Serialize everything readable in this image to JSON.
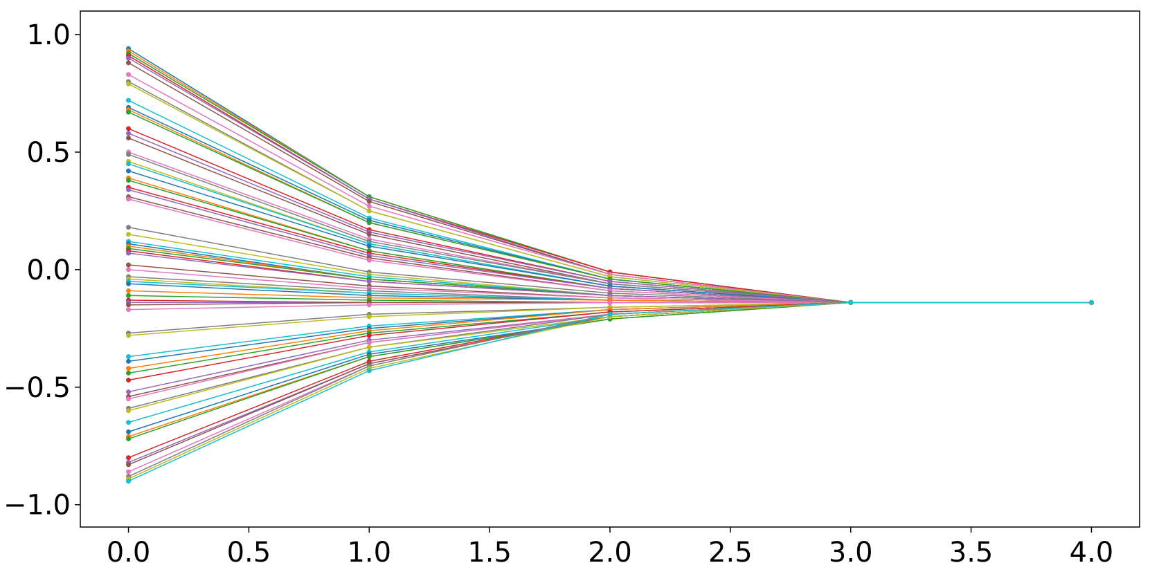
{
  "chart_data": {
    "type": "line",
    "marker": "circle",
    "x": [
      0,
      1,
      2,
      3,
      4
    ],
    "xlim": [
      -0.2,
      4.2
    ],
    "ylim": [
      -1.095,
      1.1
    ],
    "xticks": [
      {
        "value": 0,
        "label": "0.0"
      },
      {
        "value": 0.5,
        "label": "0.5"
      },
      {
        "value": 1,
        "label": "1.0"
      },
      {
        "value": 1.5,
        "label": "1.5"
      },
      {
        "value": 2,
        "label": "2.0"
      },
      {
        "value": 2.5,
        "label": "2.5"
      },
      {
        "value": 3,
        "label": "3.0"
      },
      {
        "value": 3.5,
        "label": "3.5"
      },
      {
        "value": 4,
        "label": "4.0"
      }
    ],
    "yticks": [
      {
        "value": -1,
        "label": "−1.0"
      },
      {
        "value": -0.5,
        "label": "−0.5"
      },
      {
        "value": 0,
        "label": "0.0"
      },
      {
        "value": 0.5,
        "label": "0.5"
      },
      {
        "value": 1,
        "label": "1.0"
      }
    ],
    "grid": false,
    "series": [
      {
        "color": "#1f77b4",
        "values": [
          0.94,
          0.31,
          -0.01,
          -0.14,
          -0.14
        ]
      },
      {
        "color": "#ff7f0e",
        "values": [
          0.93,
          0.31,
          -0.01,
          -0.14,
          -0.14
        ]
      },
      {
        "color": "#2ca02c",
        "values": [
          0.92,
          0.31,
          -0.01,
          -0.14,
          -0.14
        ]
      },
      {
        "color": "#d62728",
        "values": [
          0.91,
          0.3,
          -0.01,
          -0.14,
          -0.14
        ]
      },
      {
        "color": "#9467bd",
        "values": [
          0.9,
          0.3,
          -0.02,
          -0.14,
          -0.14
        ]
      },
      {
        "color": "#8c564b",
        "values": [
          0.88,
          0.29,
          -0.02,
          -0.14,
          -0.14
        ]
      },
      {
        "color": "#e377c2",
        "values": [
          0.83,
          0.27,
          -0.02,
          -0.14,
          -0.14
        ]
      },
      {
        "color": "#7f7f7f",
        "values": [
          0.8,
          0.25,
          -0.03,
          -0.14,
          -0.14
        ]
      },
      {
        "color": "#bcbd22",
        "values": [
          0.79,
          0.25,
          -0.03,
          -0.14,
          -0.14
        ]
      },
      {
        "color": "#17becf",
        "values": [
          0.72,
          0.22,
          -0.04,
          -0.14,
          -0.14
        ]
      },
      {
        "color": "#1f77b4",
        "values": [
          0.69,
          0.21,
          -0.04,
          -0.14,
          -0.14
        ]
      },
      {
        "color": "#ff7f0e",
        "values": [
          0.68,
          0.2,
          -0.04,
          -0.14,
          -0.14
        ]
      },
      {
        "color": "#2ca02c",
        "values": [
          0.67,
          0.2,
          -0.04,
          -0.14,
          -0.14
        ]
      },
      {
        "color": "#d62728",
        "values": [
          0.6,
          0.17,
          -0.05,
          -0.14,
          -0.14
        ]
      },
      {
        "color": "#9467bd",
        "values": [
          0.58,
          0.16,
          -0.05,
          -0.14,
          -0.14
        ]
      },
      {
        "color": "#8c564b",
        "values": [
          0.56,
          0.15,
          -0.06,
          -0.14,
          -0.14
        ]
      },
      {
        "color": "#e377c2",
        "values": [
          0.5,
          0.13,
          -0.06,
          -0.14,
          -0.14
        ]
      },
      {
        "color": "#7f7f7f",
        "values": [
          0.49,
          0.12,
          -0.06,
          -0.14,
          -0.14
        ]
      },
      {
        "color": "#bcbd22",
        "values": [
          0.46,
          0.11,
          -0.07,
          -0.14,
          -0.14
        ]
      },
      {
        "color": "#17becf",
        "values": [
          0.45,
          0.11,
          -0.07,
          -0.14,
          -0.14
        ]
      },
      {
        "color": "#1f77b4",
        "values": [
          0.42,
          0.1,
          -0.07,
          -0.14,
          -0.14
        ]
      },
      {
        "color": "#ff7f0e",
        "values": [
          0.39,
          0.08,
          -0.08,
          -0.14,
          -0.14
        ]
      },
      {
        "color": "#2ca02c",
        "values": [
          0.38,
          0.08,
          -0.08,
          -0.14,
          -0.14
        ]
      },
      {
        "color": "#d62728",
        "values": [
          0.35,
          0.07,
          -0.08,
          -0.14,
          -0.14
        ]
      },
      {
        "color": "#9467bd",
        "values": [
          0.34,
          0.06,
          -0.08,
          -0.14,
          -0.14
        ]
      },
      {
        "color": "#8c564b",
        "values": [
          0.31,
          0.05,
          -0.09,
          -0.14,
          -0.14
        ]
      },
      {
        "color": "#e377c2",
        "values": [
          0.3,
          0.04,
          -0.09,
          -0.14,
          -0.14
        ]
      },
      {
        "color": "#7f7f7f",
        "values": [
          0.18,
          -0.01,
          -0.1,
          -0.14,
          -0.14
        ]
      },
      {
        "color": "#bcbd22",
        "values": [
          0.15,
          -0.02,
          -0.11,
          -0.14,
          -0.14
        ]
      },
      {
        "color": "#17becf",
        "values": [
          0.12,
          -0.03,
          -0.11,
          -0.14,
          -0.14
        ]
      },
      {
        "color": "#1f77b4",
        "values": [
          0.11,
          -0.04,
          -0.11,
          -0.14,
          -0.14
        ]
      },
      {
        "color": "#ff7f0e",
        "values": [
          0.1,
          -0.04,
          -0.11,
          -0.14,
          -0.14
        ]
      },
      {
        "color": "#2ca02c",
        "values": [
          0.09,
          -0.04,
          -0.11,
          -0.14,
          -0.14
        ]
      },
      {
        "color": "#d62728",
        "values": [
          0.08,
          -0.05,
          -0.11,
          -0.14,
          -0.14
        ]
      },
      {
        "color": "#9467bd",
        "values": [
          0.07,
          -0.05,
          -0.11,
          -0.14,
          -0.14
        ]
      },
      {
        "color": "#8c564b",
        "values": [
          0.02,
          -0.07,
          -0.12,
          -0.14,
          -0.14
        ]
      },
      {
        "color": "#e377c2",
        "values": [
          0.0,
          -0.08,
          -0.12,
          -0.14,
          -0.14
        ]
      },
      {
        "color": "#7f7f7f",
        "values": [
          -0.03,
          -0.09,
          -0.13,
          -0.14,
          -0.14
        ]
      },
      {
        "color": "#bcbd22",
        "values": [
          -0.04,
          -0.1,
          -0.13,
          -0.14,
          -0.14
        ]
      },
      {
        "color": "#17becf",
        "values": [
          -0.05,
          -0.1,
          -0.13,
          -0.14,
          -0.14
        ]
      },
      {
        "color": "#1f77b4",
        "values": [
          -0.06,
          -0.11,
          -0.13,
          -0.14,
          -0.14
        ]
      },
      {
        "color": "#ff7f0e",
        "values": [
          -0.09,
          -0.12,
          -0.13,
          -0.14,
          -0.14
        ]
      },
      {
        "color": "#2ca02c",
        "values": [
          -0.11,
          -0.13,
          -0.14,
          -0.14,
          -0.14
        ]
      },
      {
        "color": "#d62728",
        "values": [
          -0.13,
          -0.14,
          -0.14,
          -0.14,
          -0.14
        ]
      },
      {
        "color": "#9467bd",
        "values": [
          -0.14,
          -0.14,
          -0.14,
          -0.14,
          -0.14
        ]
      },
      {
        "color": "#8c564b",
        "values": [
          -0.15,
          -0.14,
          -0.14,
          -0.14,
          -0.14
        ]
      },
      {
        "color": "#e377c2",
        "values": [
          -0.17,
          -0.15,
          -0.14,
          -0.14,
          -0.14
        ]
      },
      {
        "color": "#7f7f7f",
        "values": [
          -0.27,
          -0.19,
          -0.16,
          -0.14,
          -0.14
        ]
      },
      {
        "color": "#bcbd22",
        "values": [
          -0.28,
          -0.2,
          -0.16,
          -0.14,
          -0.14
        ]
      },
      {
        "color": "#17becf",
        "values": [
          -0.37,
          -0.24,
          -0.17,
          -0.14,
          -0.14
        ]
      },
      {
        "color": "#1f77b4",
        "values": [
          -0.39,
          -0.25,
          -0.17,
          -0.14,
          -0.14
        ]
      },
      {
        "color": "#ff7f0e",
        "values": [
          -0.42,
          -0.26,
          -0.17,
          -0.14,
          -0.14
        ]
      },
      {
        "color": "#2ca02c",
        "values": [
          -0.44,
          -0.27,
          -0.18,
          -0.14,
          -0.14
        ]
      },
      {
        "color": "#d62728",
        "values": [
          -0.47,
          -0.28,
          -0.18,
          -0.14,
          -0.14
        ]
      },
      {
        "color": "#9467bd",
        "values": [
          -0.52,
          -0.3,
          -0.19,
          -0.14,
          -0.14
        ]
      },
      {
        "color": "#8c564b",
        "values": [
          -0.54,
          -0.31,
          -0.19,
          -0.14,
          -0.14
        ]
      },
      {
        "color": "#e377c2",
        "values": [
          -0.55,
          -0.31,
          -0.19,
          -0.14,
          -0.14
        ]
      },
      {
        "color": "#7f7f7f",
        "values": [
          -0.59,
          -0.33,
          -0.19,
          -0.14,
          -0.14
        ]
      },
      {
        "color": "#bcbd22",
        "values": [
          -0.6,
          -0.33,
          -0.2,
          -0.14,
          -0.14
        ]
      },
      {
        "color": "#17becf",
        "values": [
          -0.65,
          -0.35,
          -0.2,
          -0.14,
          -0.14
        ]
      },
      {
        "color": "#1f77b4",
        "values": [
          -0.69,
          -0.36,
          -0.21,
          -0.14,
          -0.14
        ]
      },
      {
        "color": "#ff7f0e",
        "values": [
          -0.71,
          -0.37,
          -0.21,
          -0.14,
          -0.14
        ]
      },
      {
        "color": "#2ca02c",
        "values": [
          -0.72,
          -0.37,
          -0.21,
          -0.14,
          -0.14
        ]
      },
      {
        "color": "#d62728",
        "values": [
          -0.8,
          -0.39,
          -0.2,
          -0.14,
          -0.14
        ]
      },
      {
        "color": "#9467bd",
        "values": [
          -0.82,
          -0.4,
          -0.2,
          -0.14,
          -0.14
        ]
      },
      {
        "color": "#8c564b",
        "values": [
          -0.83,
          -0.4,
          -0.2,
          -0.14,
          -0.14
        ]
      },
      {
        "color": "#e377c2",
        "values": [
          -0.86,
          -0.41,
          -0.19,
          -0.14,
          -0.14
        ]
      },
      {
        "color": "#7f7f7f",
        "values": [
          -0.88,
          -0.41,
          -0.19,
          -0.14,
          -0.14
        ]
      },
      {
        "color": "#bcbd22",
        "values": [
          -0.89,
          -0.42,
          -0.2,
          -0.14,
          -0.14
        ]
      },
      {
        "color": "#17becf",
        "values": [
          -0.9,
          -0.43,
          -0.19,
          -0.14,
          -0.14
        ]
      }
    ]
  }
}
